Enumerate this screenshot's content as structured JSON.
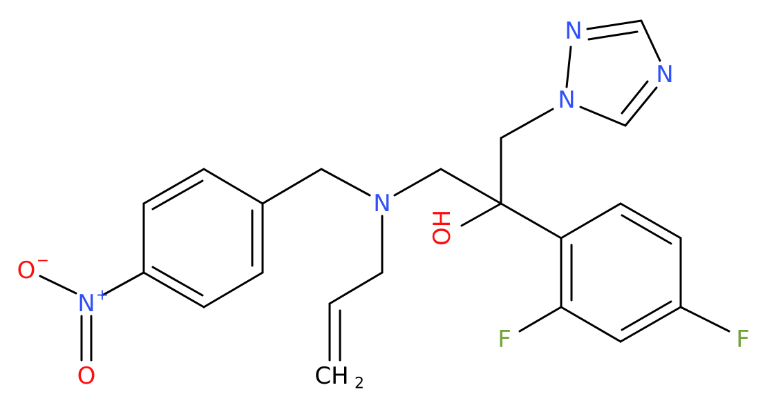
{
  "atoms": [
    {
      "label": "N"
    },
    {
      "label": "N"
    },
    {
      "label": "N"
    },
    {
      "label": "N"
    },
    {
      "label": "OH"
    },
    {
      "label": "F"
    },
    {
      "label": "F"
    },
    {
      "label": "O",
      "sup": "−"
    },
    {
      "label": "N",
      "sup": "+"
    },
    {
      "label": "O"
    },
    {
      "label": "CH",
      "sub": "2"
    }
  ]
}
